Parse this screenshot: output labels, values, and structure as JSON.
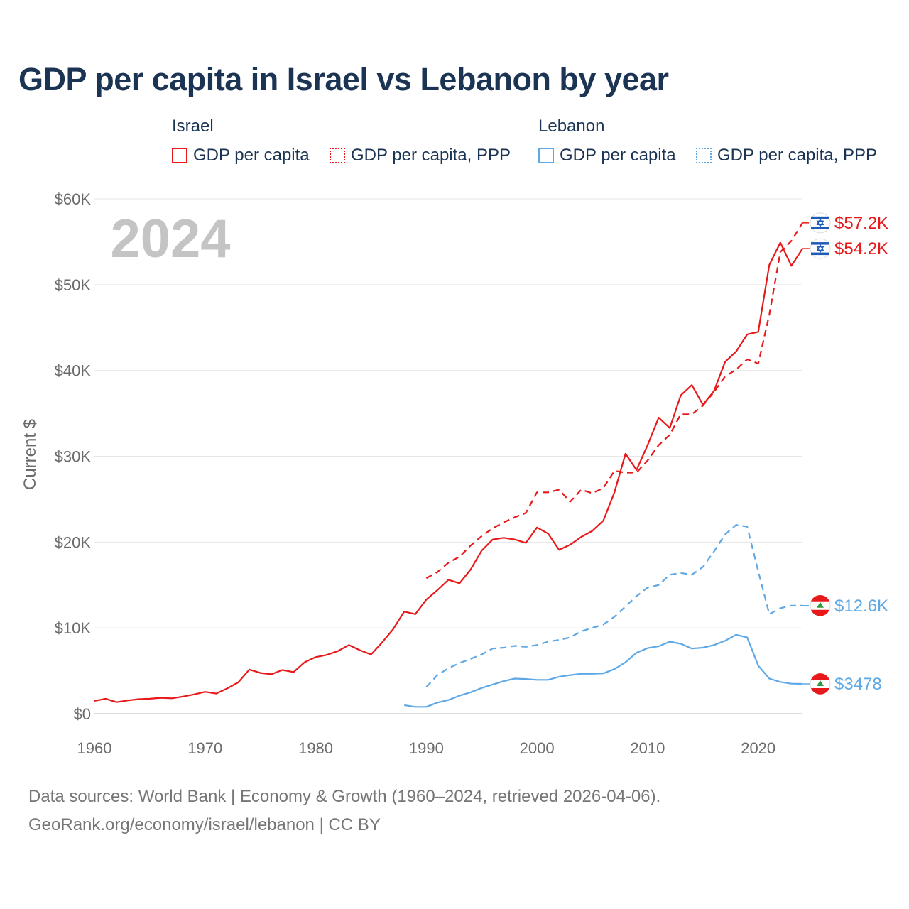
{
  "title": "GDP per capita in Israel vs Lebanon by year",
  "legend": {
    "israel_label": "Israel",
    "lebanon_label": "Lebanon",
    "israel_gdp": "GDP per capita",
    "israel_ppp": "GDP per capita, PPP",
    "lebanon_gdp": "GDP per capita",
    "lebanon_ppp": "GDP per capita, PPP"
  },
  "year_watermark": "2024",
  "colors": {
    "israel": "#e8191a",
    "lebanon": "#5fa8e6"
  },
  "footer": {
    "line1": "Data sources: World Bank | Economy & Growth (1960–2024, retrieved 2026-04-06).",
    "line2": "GeoRank.org/economy/israel/lebanon | CC BY"
  },
  "chart_data": {
    "type": "line",
    "title": "GDP per capita in Israel vs Lebanon by year",
    "xlabel": "",
    "ylabel": "Current $",
    "xlim": [
      1960,
      2024
    ],
    "ylim": [
      0,
      60000
    ],
    "x_ticks": [
      1960,
      1970,
      1980,
      1990,
      2000,
      2010,
      2020
    ],
    "x_tick_labels": [
      "1960",
      "1970",
      "1980",
      "1990",
      "2000",
      "2010",
      "2020"
    ],
    "y_ticks": [
      0,
      10000,
      20000,
      30000,
      40000,
      50000,
      60000
    ],
    "y_tick_labels": [
      "$0",
      "$10K",
      "$20K",
      "$30K",
      "$40K",
      "$50K",
      "$60K"
    ],
    "grid": true,
    "end_labels": {
      "israel_ppp": "$57.2K",
      "israel_gdp": "$54.2K",
      "lebanon_ppp": "$12.6K",
      "lebanon_gdp": "$3478"
    },
    "series": [
      {
        "name": "Israel — GDP per capita",
        "country": "Israel",
        "style": "solid",
        "color": "#e8191a",
        "x": [
          1960,
          1961,
          1962,
          1963,
          1964,
          1965,
          1966,
          1967,
          1968,
          1969,
          1970,
          1971,
          1972,
          1973,
          1974,
          1975,
          1976,
          1977,
          1978,
          1979,
          1980,
          1981,
          1982,
          1983,
          1984,
          1985,
          1986,
          1987,
          1988,
          1989,
          1990,
          1991,
          1992,
          1993,
          1994,
          1995,
          1996,
          1997,
          1998,
          1999,
          2000,
          2001,
          2002,
          2003,
          2004,
          2005,
          2006,
          2007,
          2008,
          2009,
          2010,
          2011,
          2012,
          2013,
          2014,
          2015,
          2016,
          2017,
          2018,
          2019,
          2020,
          2021,
          2022,
          2023,
          2024
        ],
        "values": [
          1500,
          1750,
          1350,
          1550,
          1700,
          1750,
          1850,
          1800,
          2000,
          2250,
          2550,
          2350,
          2950,
          3650,
          5150,
          4750,
          4600,
          5100,
          4850,
          6000,
          6600,
          6850,
          7300,
          8000,
          7400,
          6900,
          8300,
          9850,
          11900,
          11600,
          13300,
          14400,
          15600,
          15200,
          16800,
          19000,
          20300,
          20500,
          20300,
          19900,
          21700,
          21000,
          19100,
          19700,
          20600,
          21300,
          22500,
          25800,
          30300,
          28400,
          31300,
          34500,
          33300,
          37100,
          38300,
          36000,
          37600,
          41000,
          42200,
          44200,
          44500,
          52300,
          54900,
          52200,
          54200
        ]
      },
      {
        "name": "Israel — GDP per capita, PPP",
        "country": "Israel",
        "style": "dashed",
        "color": "#e8191a",
        "x": [
          1990,
          1991,
          1992,
          1993,
          1994,
          1995,
          1996,
          1997,
          1998,
          1999,
          2000,
          2001,
          2002,
          2003,
          2004,
          2005,
          2006,
          2007,
          2008,
          2009,
          2010,
          2011,
          2012,
          2013,
          2014,
          2015,
          2016,
          2017,
          2018,
          2019,
          2020,
          2021,
          2022,
          2023,
          2024
        ],
        "values": [
          15800,
          16500,
          17600,
          18300,
          19600,
          20700,
          21600,
          22300,
          22900,
          23400,
          25800,
          25800,
          26100,
          24700,
          26100,
          25700,
          26300,
          28300,
          28100,
          28100,
          29500,
          31300,
          32500,
          34900,
          34900,
          35900,
          37500,
          39300,
          40100,
          41300,
          40800,
          46500,
          53800,
          55100,
          57200
        ]
      },
      {
        "name": "Lebanon — GDP per capita",
        "country": "Lebanon",
        "style": "solid",
        "color": "#5fa8e6",
        "x": [
          1988,
          1989,
          1990,
          1991,
          1992,
          1993,
          1994,
          1995,
          1996,
          1997,
          1998,
          1999,
          2000,
          2001,
          2002,
          2003,
          2004,
          2005,
          2006,
          2007,
          2008,
          2009,
          2010,
          2011,
          2012,
          2013,
          2014,
          2015,
          2016,
          2017,
          2018,
          2019,
          2020,
          2021,
          2022,
          2023,
          2024
        ],
        "values": [
          1000,
          800,
          800,
          1300,
          1600,
          2100,
          2500,
          3000,
          3400,
          3800,
          4100,
          4050,
          3950,
          3950,
          4300,
          4500,
          4650,
          4650,
          4700,
          5200,
          6000,
          7100,
          7650,
          7850,
          8400,
          8150,
          7600,
          7700,
          8000,
          8500,
          9200,
          8900,
          5600,
          4100,
          3700,
          3500,
          3478
        ]
      },
      {
        "name": "Lebanon — GDP per capita, PPP",
        "country": "Lebanon",
        "style": "dashed",
        "color": "#5fa8e6",
        "x": [
          1990,
          1991,
          1992,
          1993,
          1994,
          1995,
          1996,
          1997,
          1998,
          1999,
          2000,
          2001,
          2002,
          2003,
          2004,
          2005,
          2006,
          2007,
          2008,
          2009,
          2010,
          2011,
          2012,
          2013,
          2014,
          2015,
          2016,
          2017,
          2018,
          2019,
          2020,
          2021,
          2022,
          2023,
          2024
        ],
        "values": [
          3100,
          4500,
          5300,
          5900,
          6400,
          6900,
          7600,
          7700,
          7900,
          7800,
          8000,
          8400,
          8600,
          8900,
          9600,
          10000,
          10400,
          11300,
          12500,
          13700,
          14700,
          15000,
          16200,
          16400,
          16200,
          17100,
          18900,
          20900,
          22000,
          21800,
          16600,
          11600,
          12300,
          12600,
          12600
        ]
      }
    ]
  }
}
